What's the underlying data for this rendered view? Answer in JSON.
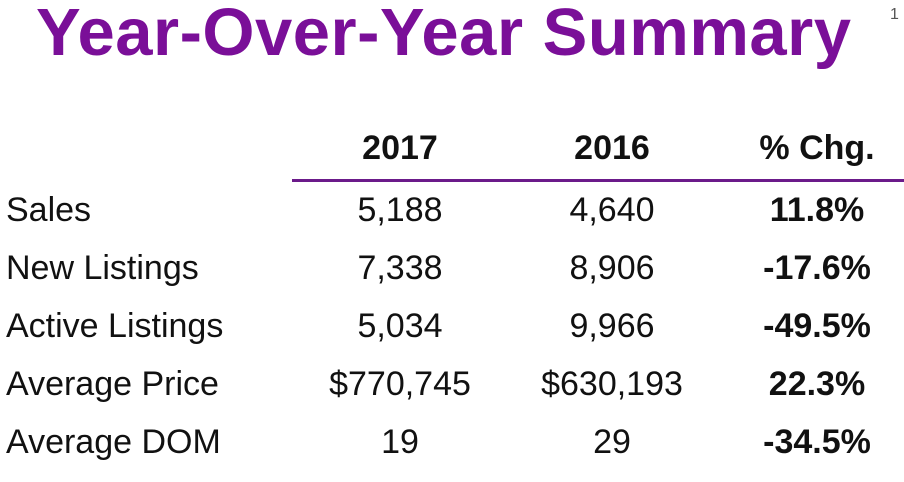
{
  "title": "Year-Over-Year Summary",
  "slide_number": "1",
  "table": {
    "headers": [
      "2017",
      "2016",
      "% Chg."
    ],
    "rows": [
      {
        "label": "Sales",
        "y2017": "5,188",
        "y2016": "4,640",
        "pct": "11.8%"
      },
      {
        "label": "New Listings",
        "y2017": "7,338",
        "y2016": "8,906",
        "pct": "-17.6%"
      },
      {
        "label": "Active Listings",
        "y2017": "5,034",
        "y2016": "9,966",
        "pct": "-49.5%"
      },
      {
        "label": "Average Price",
        "y2017": "$770,745",
        "y2016": "$630,193",
        "pct": "22.3%"
      },
      {
        "label": "Average DOM",
        "y2017": "19",
        "y2016": "29",
        "pct": "-34.5%"
      }
    ]
  },
  "colors": {
    "title": "#7a0f98",
    "rule": "#6b1a8a"
  }
}
